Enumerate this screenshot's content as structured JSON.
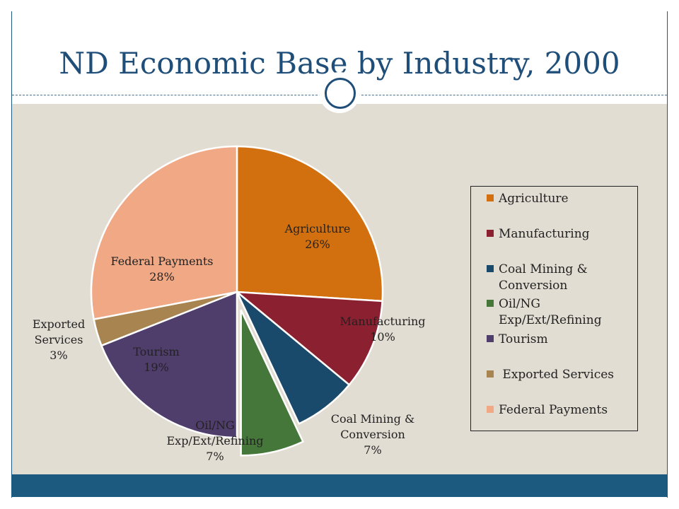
{
  "slide": {
    "title": "ND Economic Base by Industry, 2000"
  },
  "colors": {
    "title": "#1f4e79",
    "accent_bar": "#1d5a80",
    "content_bg": "#e2ddd3"
  },
  "chart_data": {
    "type": "pie",
    "title": "",
    "legend_position": "right",
    "exploded": [
      "Oil/NG Exp/Ext/Refining"
    ],
    "slices": [
      {
        "name": "Agriculture",
        "legend": "Agriculture",
        "label_lines": [
          "Agriculture",
          "26%"
        ],
        "value": 26,
        "color": "#d2700f"
      },
      {
        "name": "Manufacturing",
        "legend": "Manufacturing",
        "label_lines": [
          "Manufacturing",
          "10%"
        ],
        "value": 10,
        "color": "#8b2030"
      },
      {
        "name": "Coal Mining & Conversion",
        "legend": "Coal Mining &\nConversion",
        "label_lines": [
          "Coal Mining &",
          "Conversion",
          "7%"
        ],
        "value": 7,
        "color": "#1a4a6b"
      },
      {
        "name": "Oil/NG Exp/Ext/Refining",
        "legend": "Oil/NG\nExp/Ext/Refining",
        "label_lines": [
          "Oil/NG",
          "Exp/Ext/Refining",
          "7%"
        ],
        "value": 7,
        "color": "#45763a"
      },
      {
        "name": "Tourism",
        "legend": "Tourism",
        "label_lines": [
          "Tourism",
          "19%"
        ],
        "value": 19,
        "color": "#4f3d6b"
      },
      {
        "name": "Exported Services",
        "legend": " Exported Services",
        "label_lines": [
          "Exported",
          "Services",
          "3%"
        ],
        "value": 3,
        "color": "#a88550"
      },
      {
        "name": "Federal Payments",
        "legend": "Federal Payments",
        "label_lines": [
          "Federal Payments",
          "28%"
        ],
        "value": 28,
        "color": "#f0a885"
      }
    ]
  }
}
